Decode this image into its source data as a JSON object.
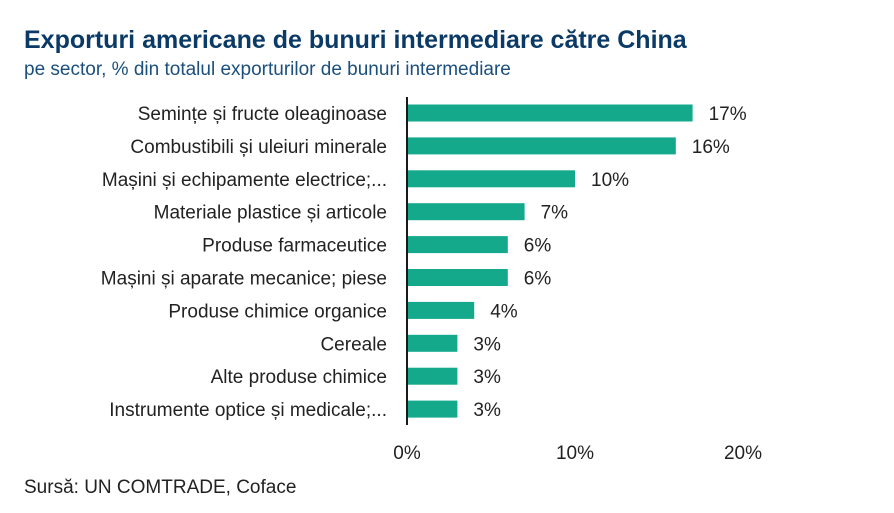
{
  "chart_data": {
    "type": "bar",
    "orientation": "horizontal",
    "title": "Exporturi americane de bunuri intermediare către China",
    "subtitle": "pe sector, % din totalul exporturilor de bunuri intermediare",
    "categories": [
      "Semințe și fructe oleaginoase",
      "Combustibili și uleiuri minerale",
      "Mașini și echipamente electrice;...",
      "Materiale plastice și articole",
      "Produse farmaceutice",
      "Mașini și aparate mecanice; piese",
      "Produse chimice organice",
      "Cereale",
      "Alte produse chimice",
      "Instrumente optice și medicale;..."
    ],
    "values": [
      17,
      16,
      10,
      7,
      6,
      6,
      4,
      3,
      3,
      3
    ],
    "data_labels": [
      "17%",
      "16%",
      "10%",
      "7%",
      "6%",
      "6%",
      "4%",
      "3%",
      "3%",
      "3%"
    ],
    "xlim": [
      0,
      20
    ],
    "xticks": [
      0,
      10,
      20
    ],
    "xtick_labels": [
      "0%",
      "10%",
      "20%"
    ],
    "grid": false,
    "legend": "none",
    "bar_color": "#13a98a",
    "axis_color": "#1a1a1a"
  },
  "source": "Sursă: UN COMTRADE, Coface"
}
